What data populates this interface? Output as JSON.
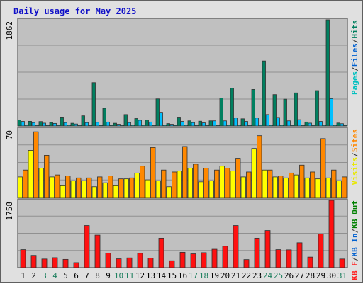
{
  "chart_data": {
    "type": "bar",
    "title": "Daily usage for May 2025",
    "categories": [
      "1",
      "2",
      "3",
      "4",
      "5",
      "6",
      "7",
      "8",
      "9",
      "10",
      "11",
      "12",
      "13",
      "14",
      "15",
      "16",
      "17",
      "18",
      "19",
      "20",
      "21",
      "22",
      "23",
      "24",
      "25",
      "26",
      "27",
      "28",
      "29",
      "30",
      "31"
    ],
    "weekend_days": [
      "3",
      "4",
      "10",
      "11",
      "17",
      "18",
      "24",
      "25",
      "31"
    ],
    "grid": true,
    "panels": [
      {
        "id": "hits",
        "ylim": [
          0,
          1862
        ],
        "max_label": "1862",
        "axis_label_parts": [
          {
            "text": "Pages",
            "color": "#00c0c0"
          },
          {
            "text": "/",
            "color": "#303030"
          },
          {
            "text": "Files",
            "color": "#0060d0"
          },
          {
            "text": "/",
            "color": "#303030"
          },
          {
            "text": "Hits",
            "color": "#008060"
          }
        ],
        "series": [
          {
            "name": "Hits",
            "color": "#008060",
            "values": [
              104,
              82,
              78,
              62,
              156,
              48,
              178,
              760,
              310,
              48,
              200,
              130,
              103,
              475,
              42,
              155,
              90,
              84,
              90,
              490,
              665,
              126,
              640,
              1140,
              550,
              470,
              580,
              70,
              620,
              1862,
              52
            ]
          },
          {
            "name": "Files",
            "color": "#00c0ff",
            "values": [
              80,
              60,
              50,
              45,
              60,
              35,
              60,
              65,
              70,
              30,
              60,
              100,
              70,
              240,
              30,
              80,
              60,
              55,
              90,
              90,
              140,
              80,
              140,
              200,
              150,
              90,
              110,
              50,
              80,
              480,
              40
            ]
          },
          {
            "name": "Pages",
            "color": "#00c0c0",
            "values": [
              15,
              12,
              12,
              10,
              15,
              10,
              10,
              12,
              12,
              10,
              15,
              15,
              10,
              15,
              10,
              15,
              12,
              12,
              12,
              15,
              15,
              12,
              15,
              15,
              15,
              12,
              12,
              10,
              15,
              15,
              10
            ]
          }
        ]
      },
      {
        "id": "visits",
        "ylim": [
          0,
          70
        ],
        "max_label": "70",
        "axis_label_parts": [
          {
            "text": "Visits",
            "color": "#e8e800"
          },
          {
            "text": "/",
            "color": "#303030"
          },
          {
            "text": "Sites",
            "color": "#ff8800"
          }
        ],
        "series": [
          {
            "name": "Visits",
            "color": "#ffff00",
            "values": [
              21,
              48,
              30,
              21,
              12,
              17,
              17,
              11,
              15,
              12,
              19,
              25,
              18,
              17,
              11,
              27,
              30,
              16,
              17,
              32,
              27,
              21,
              50,
              28,
              21,
              20,
              23,
              20,
              19,
              20,
              17
            ]
          },
          {
            "name": "Sites",
            "color": "#ff8800",
            "values": [
              28,
              67,
              43,
              23,
              22,
              20,
              20,
              21,
              22,
              19,
              20,
              32,
              51,
              28,
              26,
              52,
              34,
              30,
              28,
              30,
              40,
              26,
              63,
              28,
              22,
              25,
              33,
              26,
              60,
              28,
              21
            ]
          }
        ]
      },
      {
        "id": "kbytes",
        "ylim": [
          0,
          1758
        ],
        "max_label": "1758",
        "axis_label_parts": [
          {
            "text": "KB F",
            "color": "#ff2020"
          },
          {
            "text": "/",
            "color": "#303030"
          },
          {
            "text": "KB In",
            "color": "#0060d0"
          },
          {
            "text": "/",
            "color": "#303030"
          },
          {
            "text": "KB Out",
            "color": "#008000"
          }
        ],
        "series": [
          {
            "name": "KB F",
            "color": "#ff1010",
            "values": [
              470,
              320,
              225,
              260,
              215,
              130,
              1100,
              850,
              380,
              230,
              255,
              375,
              250,
              770,
              180,
              400,
              360,
              390,
              480,
              560,
              1100,
              210,
              770,
              970,
              470,
              465,
              650,
              275,
              880,
              1758,
              225
            ]
          }
        ]
      }
    ]
  }
}
